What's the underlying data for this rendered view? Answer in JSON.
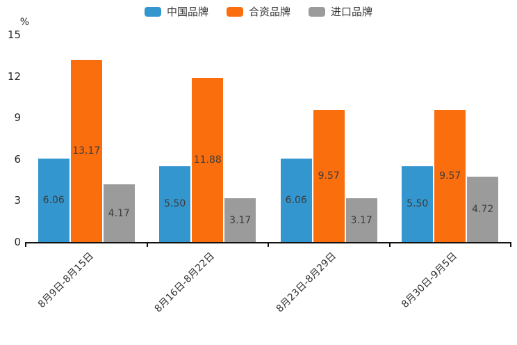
{
  "page": {
    "background": "#ffffff"
  },
  "y_axis": {
    "unit_label": "%"
  },
  "chart_data": {
    "type": "bar",
    "title": "",
    "xlabel": "",
    "ylabel": "%",
    "ylim": [
      0,
      15
    ],
    "y_ticks": [
      0,
      3,
      6,
      9,
      12,
      15
    ],
    "grid": false,
    "legend_position": "top",
    "categories": [
      "8月9日-8月15日",
      "8月16日-8月22日",
      "8月23日-8月29日",
      "8月30日-9月5日"
    ],
    "series": [
      {
        "name": "中国品牌",
        "slug": "china-brand",
        "color": "#3396CE",
        "values": [
          6.06,
          5.5,
          6.06,
          5.5
        ]
      },
      {
        "name": "合资品牌",
        "slug": "joint-venture-brand",
        "color": "#FB6E0D",
        "values": [
          13.17,
          11.88,
          9.57,
          9.57
        ]
      },
      {
        "name": "进口品牌",
        "slug": "import-brand",
        "color": "#9B9B9B",
        "values": [
          4.17,
          3.17,
          3.17,
          4.72
        ]
      }
    ],
    "value_label_decimals": 2,
    "colors": {
      "axis_line": "#111111",
      "tick_text": "#262626",
      "value_label_text": "#3c3c3c",
      "x_label_text": "#333333"
    }
  }
}
